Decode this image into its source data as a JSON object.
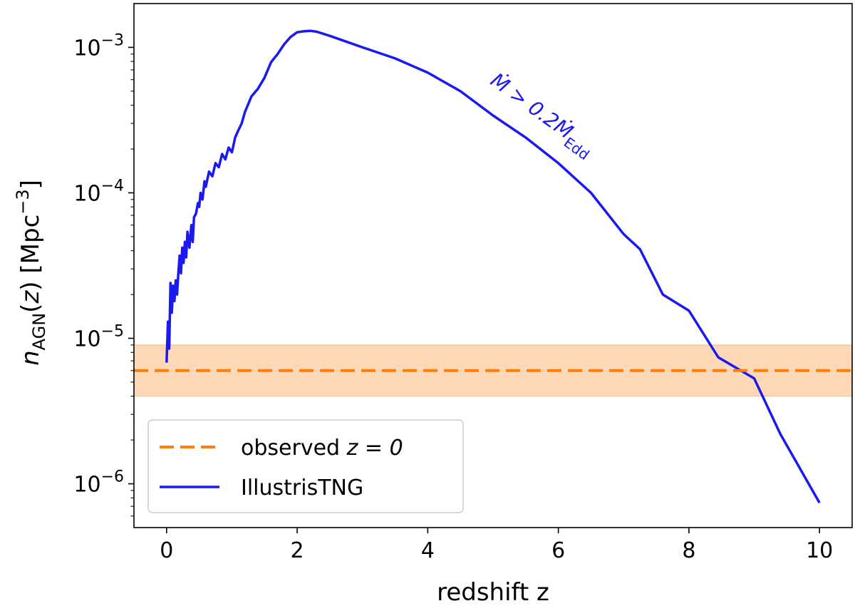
{
  "chart_data": {
    "type": "line",
    "xlabel": "redshift z",
    "ylabel": "n_AGN(z) [Mpc^-3]",
    "xlim": [
      -0.5,
      10.5
    ],
    "ylim": [
      5e-07,
      0.002
    ],
    "yscale": "log",
    "grid": false,
    "legend_position": "lower-left",
    "x_ticks": [
      "0",
      "2",
      "4",
      "6",
      "8",
      "10"
    ],
    "x_tick_values": [
      0,
      2,
      4,
      6,
      8,
      10
    ],
    "y_ticks": [
      "10^-3",
      "10^-4",
      "10^-5",
      "10^-6"
    ],
    "y_tick_values": [
      0.001,
      0.0001,
      1e-05,
      1e-06
    ],
    "series": [
      {
        "name": "IllustrisTNG",
        "color": "#1a1af0",
        "style": "solid",
        "x": [
          0.0,
          0.02,
          0.04,
          0.06,
          0.08,
          0.1,
          0.12,
          0.14,
          0.16,
          0.18,
          0.2,
          0.22,
          0.24,
          0.26,
          0.28,
          0.3,
          0.32,
          0.35,
          0.38,
          0.4,
          0.42,
          0.45,
          0.48,
          0.5,
          0.52,
          0.55,
          0.58,
          0.6,
          0.65,
          0.7,
          0.75,
          0.8,
          0.85,
          0.9,
          0.95,
          1.0,
          1.05,
          1.1,
          1.15,
          1.2,
          1.3,
          1.4,
          1.5,
          1.6,
          1.7,
          1.8,
          1.9,
          2.0,
          2.1,
          2.2,
          2.3,
          2.5,
          3.0,
          3.5,
          4.0,
          4.5,
          5.0,
          5.5,
          6.0,
          6.5,
          7.0,
          7.25,
          7.6,
          8.0,
          8.45,
          9.0,
          9.4,
          10.0
        ],
        "y": [
          6.8e-06,
          1.3e-05,
          8.5e-06,
          2.4e-05,
          1.5e-05,
          2.3e-05,
          1.8e-05,
          2.5e-05,
          2e-05,
          2.8e-05,
          3.7e-05,
          2.8e-05,
          4.2e-05,
          3.3e-05,
          4.6e-05,
          3.6e-05,
          5.4e-05,
          4.2e-05,
          6e-05,
          4.6e-05,
          6.8e-05,
          7.2e-05,
          8.5e-05,
          8e-05,
          0.0001,
          9e-05,
          0.00012,
          0.00011,
          0.00014,
          0.00013,
          0.00016,
          0.00015,
          0.000185,
          0.00017,
          0.000205,
          0.00019,
          0.00024,
          0.00027,
          0.0003,
          0.00036,
          0.00046,
          0.00052,
          0.00062,
          0.00079,
          0.0009,
          0.00105,
          0.00118,
          0.00127,
          0.00129,
          0.0013,
          0.00128,
          0.0012,
          0.001,
          0.00084,
          0.00067,
          0.0005,
          0.00034,
          0.00024,
          0.00016,
          0.0001,
          5.2e-05,
          4.1e-05,
          2e-05,
          1.55e-05,
          7.4e-06,
          5.3e-06,
          2.2e-06,
          7.4e-07
        ]
      },
      {
        "name": "observed z = 0",
        "color": "#ff7f0e",
        "style": "dashed",
        "x": [
          -0.5,
          10.5
        ],
        "y": [
          6e-06,
          6e-06
        ]
      }
    ],
    "band": {
      "color": "#ff7f0e",
      "alpha": 0.3,
      "lower": 4e-06,
      "upper": 9e-06
    },
    "annotation": {
      "text": "Ṁ > 0.2Ṁ_Edd",
      "main": "Ṁ > 0.2Ṁ",
      "subscript": "Edd",
      "x": 5.7,
      "y": 0.00032,
      "rotation_deg": 36
    },
    "legend": [
      {
        "label": "observed ",
        "math": "z = 0",
        "style": "dashed",
        "color": "#ff7f0e"
      },
      {
        "label": "IllustrisTNG",
        "math": "",
        "style": "solid",
        "color": "#1a1af0"
      }
    ]
  }
}
